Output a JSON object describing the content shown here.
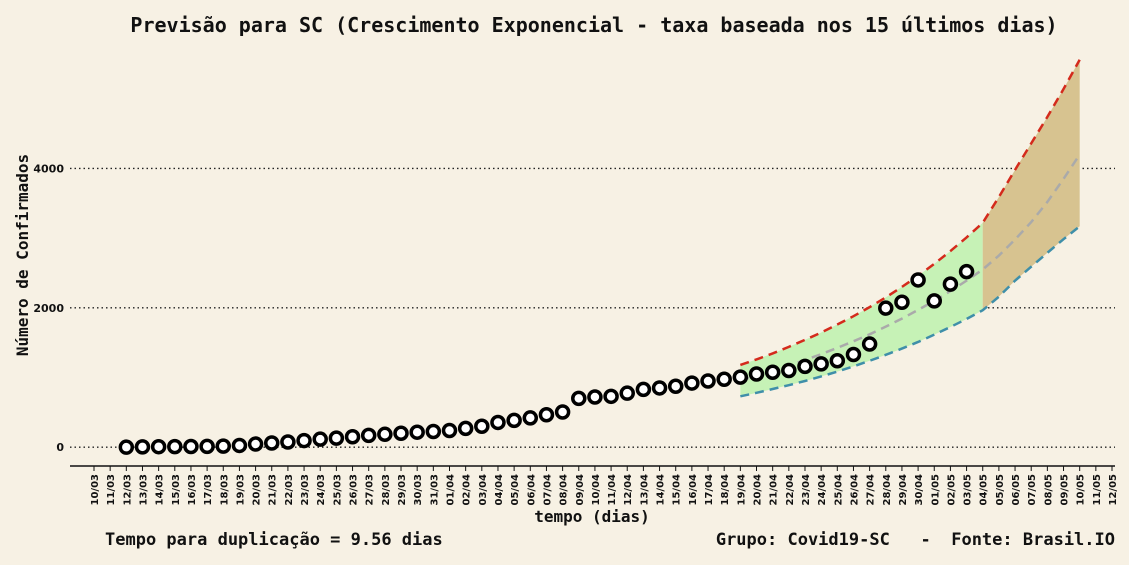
{
  "chart_data": {
    "type": "scatter",
    "title": "Previsão para SC (Crescimento Exponencial - taxa baseada nos 15 últimos dias)",
    "xlabel": "tempo (dias)",
    "ylabel": "Número de Confirmados",
    "yticks": [
      "0",
      "2000",
      "4000"
    ],
    "ylim": [
      -270,
      5700
    ],
    "grid": "horizontal dotted",
    "x_categories": [
      "10/03",
      "11/03",
      "12/03",
      "13/03",
      "14/03",
      "15/03",
      "16/03",
      "17/03",
      "18/03",
      "19/03",
      "20/03",
      "21/03",
      "22/03",
      "23/03",
      "24/03",
      "25/03",
      "26/03",
      "27/03",
      "28/03",
      "29/03",
      "30/03",
      "31/03",
      "01/04",
      "02/04",
      "03/04",
      "04/04",
      "05/04",
      "06/04",
      "07/04",
      "08/04",
      "09/04",
      "10/04",
      "11/04",
      "12/04",
      "13/04",
      "14/04",
      "15/04",
      "16/04",
      "17/04",
      "18/04",
      "19/04",
      "20/04",
      "21/04",
      "22/04",
      "23/04",
      "24/04",
      "25/04",
      "26/04",
      "27/04",
      "28/04",
      "29/04",
      "30/04",
      "01/05",
      "02/05",
      "03/05",
      "04/05",
      "05/05",
      "06/05",
      "07/05",
      "08/05",
      "09/05",
      "10/05",
      "11/05",
      "12/05"
    ],
    "confirmados": {
      "x": [
        "12/03",
        "13/03",
        "14/03",
        "15/03",
        "16/03",
        "17/03",
        "18/03",
        "19/03",
        "20/03",
        "21/03",
        "22/03",
        "23/03",
        "24/03",
        "25/03",
        "26/03",
        "27/03",
        "28/03",
        "29/03",
        "30/03",
        "31/03",
        "01/04",
        "02/04",
        "03/04",
        "04/04",
        "05/04",
        "06/04",
        "07/04",
        "08/04",
        "09/04",
        "10/04",
        "11/04",
        "12/04",
        "13/04",
        "14/04",
        "15/04",
        "16/04",
        "17/04",
        "18/04",
        "19/04",
        "20/04",
        "21/04",
        "22/04",
        "23/04",
        "24/04",
        "25/04",
        "26/04",
        "27/04",
        "28/04",
        "29/04",
        "30/04",
        "01/05",
        "02/05",
        "03/05"
      ],
      "y": [
        0,
        5,
        7,
        8,
        10,
        12,
        15,
        25,
        45,
        60,
        75,
        95,
        115,
        130,
        150,
        170,
        185,
        200,
        215,
        225,
        240,
        270,
        300,
        355,
        385,
        420,
        465,
        505,
        700,
        720,
        730,
        775,
        830,
        850,
        875,
        920,
        950,
        975,
        1005,
        1050,
        1075,
        1100,
        1160,
        1195,
        1240,
        1330,
        1480,
        1995,
        2080,
        2400,
        2100,
        2340,
        2520
      ]
    },
    "forecast": {
      "x": [
        "19/04",
        "20/04",
        "21/04",
        "22/04",
        "23/04",
        "24/04",
        "25/04",
        "26/04",
        "27/04",
        "28/04",
        "29/04",
        "30/04",
        "01/05",
        "02/05",
        "03/05",
        "04/05",
        "05/05",
        "06/05",
        "07/05",
        "08/05",
        "09/05",
        "10/05"
      ],
      "central": [
        960,
        1025,
        1095,
        1170,
        1250,
        1335,
        1425,
        1520,
        1620,
        1730,
        1845,
        1970,
        2100,
        2240,
        2390,
        2550,
        2750,
        2980,
        3230,
        3520,
        3850,
        4200
      ],
      "upper": [
        1180,
        1260,
        1345,
        1440,
        1540,
        1645,
        1760,
        1880,
        2010,
        2150,
        2300,
        2460,
        2630,
        2815,
        3010,
        3220,
        3590,
        3980,
        4360,
        4740,
        5140,
        5560
      ],
      "lower": [
        730,
        780,
        835,
        890,
        950,
        1015,
        1085,
        1160,
        1240,
        1325,
        1415,
        1510,
        1615,
        1725,
        1840,
        1965,
        2160,
        2390,
        2590,
        2790,
        2985,
        3170
      ]
    },
    "colors": {
      "background": "#f7f1e4",
      "points": "#000000",
      "upper": "#d42a1c",
      "lower": "#3f8fa9",
      "central": "#aaaaaa",
      "band_observed": "#c6f2b6",
      "band_future": "#d7c390"
    }
  },
  "footer": {
    "doubling": "Tempo para duplicação = 9.56 dias",
    "credits": "Grupo: Covid19-SC   -  Fonte: Brasil.IO"
  }
}
